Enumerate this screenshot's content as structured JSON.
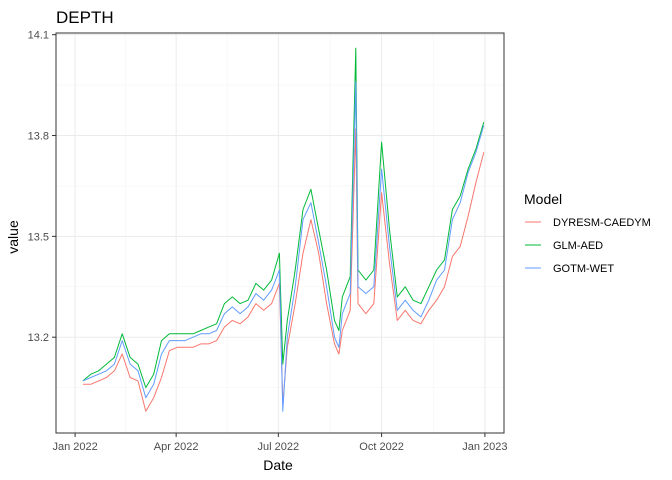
{
  "chart_data": {
    "type": "line",
    "title": "DEPTH",
    "xlabel": "Date",
    "ylabel": "value",
    "x_ticks": [
      "2022-01-01",
      "2022-04-01",
      "2022-07-01",
      "2022-10-01",
      "2023-01-01"
    ],
    "x_tick_labels": [
      "Jan 2022",
      "Apr 2022",
      "Jul 2022",
      "Oct 2022",
      "Jan 2023"
    ],
    "y_ticks": [
      13.2,
      13.5,
      13.8,
      14.1
    ],
    "y_tick_labels": [
      "13.2",
      "13.5",
      "13.8",
      "14.1"
    ],
    "xlim": [
      "2021-12-15",
      "2023-01-18"
    ],
    "ylim": [
      12.915,
      14.105
    ],
    "grid": true,
    "legend_title": "Model",
    "legend_position": "right",
    "x": [
      "2022-01-08",
      "2022-01-15",
      "2022-01-22",
      "2022-01-29",
      "2022-02-05",
      "2022-02-12",
      "2022-02-19",
      "2022-02-26",
      "2022-03-05",
      "2022-03-12",
      "2022-03-19",
      "2022-03-26",
      "2022-04-02",
      "2022-04-09",
      "2022-04-16",
      "2022-04-23",
      "2022-04-30",
      "2022-05-07",
      "2022-05-14",
      "2022-05-21",
      "2022-05-28",
      "2022-06-04",
      "2022-06-11",
      "2022-06-18",
      "2022-06-25",
      "2022-07-02",
      "2022-07-05",
      "2022-07-09",
      "2022-07-16",
      "2022-07-23",
      "2022-07-30",
      "2022-08-06",
      "2022-08-13",
      "2022-08-20",
      "2022-08-24",
      "2022-08-27",
      "2022-09-03",
      "2022-09-08",
      "2022-09-10",
      "2022-09-17",
      "2022-09-24",
      "2022-10-01",
      "2022-10-08",
      "2022-10-15",
      "2022-10-22",
      "2022-10-29",
      "2022-11-05",
      "2022-11-12",
      "2022-11-19",
      "2022-11-26",
      "2022-12-03",
      "2022-12-10",
      "2022-12-17",
      "2022-12-24",
      "2022-12-31"
    ],
    "series": [
      {
        "name": "DYRESM-CAEDYM",
        "color": "#F8766D",
        "values": [
          13.06,
          13.06,
          13.07,
          13.08,
          13.1,
          13.15,
          13.08,
          13.07,
          12.98,
          13.02,
          13.08,
          13.16,
          13.17,
          13.17,
          13.17,
          13.18,
          13.18,
          13.19,
          13.23,
          13.25,
          13.24,
          13.26,
          13.3,
          13.28,
          13.3,
          13.36,
          13.0,
          13.17,
          13.3,
          13.45,
          13.55,
          13.45,
          13.3,
          13.18,
          13.15,
          13.22,
          13.28,
          13.82,
          13.3,
          13.27,
          13.3,
          13.63,
          13.42,
          13.25,
          13.28,
          13.25,
          13.24,
          13.28,
          13.31,
          13.35,
          13.44,
          13.47,
          13.56,
          13.66,
          13.75
        ]
      },
      {
        "name": "GLM-AED",
        "color": "#00BA38",
        "values": [
          13.07,
          13.09,
          13.1,
          13.12,
          13.14,
          13.21,
          13.14,
          13.12,
          13.05,
          13.09,
          13.19,
          13.21,
          13.21,
          13.21,
          13.21,
          13.22,
          13.23,
          13.24,
          13.3,
          13.32,
          13.3,
          13.31,
          13.36,
          13.34,
          13.37,
          13.45,
          13.12,
          13.25,
          13.4,
          13.58,
          13.64,
          13.52,
          13.4,
          13.25,
          13.22,
          13.32,
          13.38,
          14.06,
          13.4,
          13.37,
          13.4,
          13.78,
          13.52,
          13.32,
          13.35,
          13.31,
          13.3,
          13.35,
          13.4,
          13.43,
          13.58,
          13.62,
          13.7,
          13.76,
          13.84
        ]
      },
      {
        "name": "GOTM-WET",
        "color": "#619CFF",
        "values": [
          13.07,
          13.08,
          13.09,
          13.1,
          13.12,
          13.19,
          13.12,
          13.1,
          13.02,
          13.06,
          13.15,
          13.19,
          13.19,
          13.19,
          13.2,
          13.21,
          13.21,
          13.22,
          13.27,
          13.29,
          13.27,
          13.29,
          13.33,
          13.31,
          13.34,
          13.4,
          12.98,
          13.2,
          13.35,
          13.55,
          13.6,
          13.48,
          13.35,
          13.2,
          13.17,
          13.27,
          13.33,
          13.96,
          13.35,
          13.33,
          13.35,
          13.7,
          13.47,
          13.28,
          13.31,
          13.28,
          13.26,
          13.31,
          13.37,
          13.4,
          13.55,
          13.6,
          13.69,
          13.75,
          13.83
        ]
      }
    ]
  }
}
